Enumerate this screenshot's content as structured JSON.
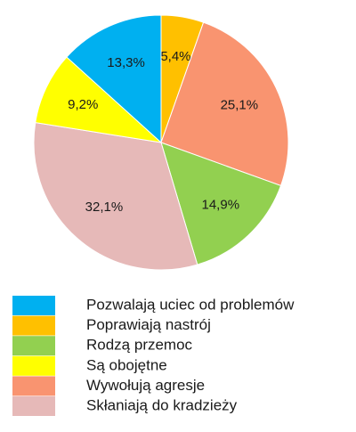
{
  "chart_data": {
    "type": "pie",
    "categories": [
      "Poprawiają nastrój",
      "Wywołują agresje",
      "Rodzą przemoc",
      "Skłaniają do kradzieży",
      "Są obojętne",
      "Pozwalają uciec od problemów"
    ],
    "values": [
      5.4,
      25.1,
      14.9,
      32.1,
      9.2,
      13.3
    ],
    "value_labels": [
      "5,4%",
      "25,1%",
      "14,9%",
      "32,1%",
      "9,2%",
      "13,3%"
    ],
    "colors": [
      "#FFC000",
      "#F99470",
      "#92D050",
      "#E6B9B8",
      "#FFFF00",
      "#00B0F0"
    ],
    "legend_order": [
      5,
      0,
      2,
      4,
      1,
      3
    ]
  }
}
